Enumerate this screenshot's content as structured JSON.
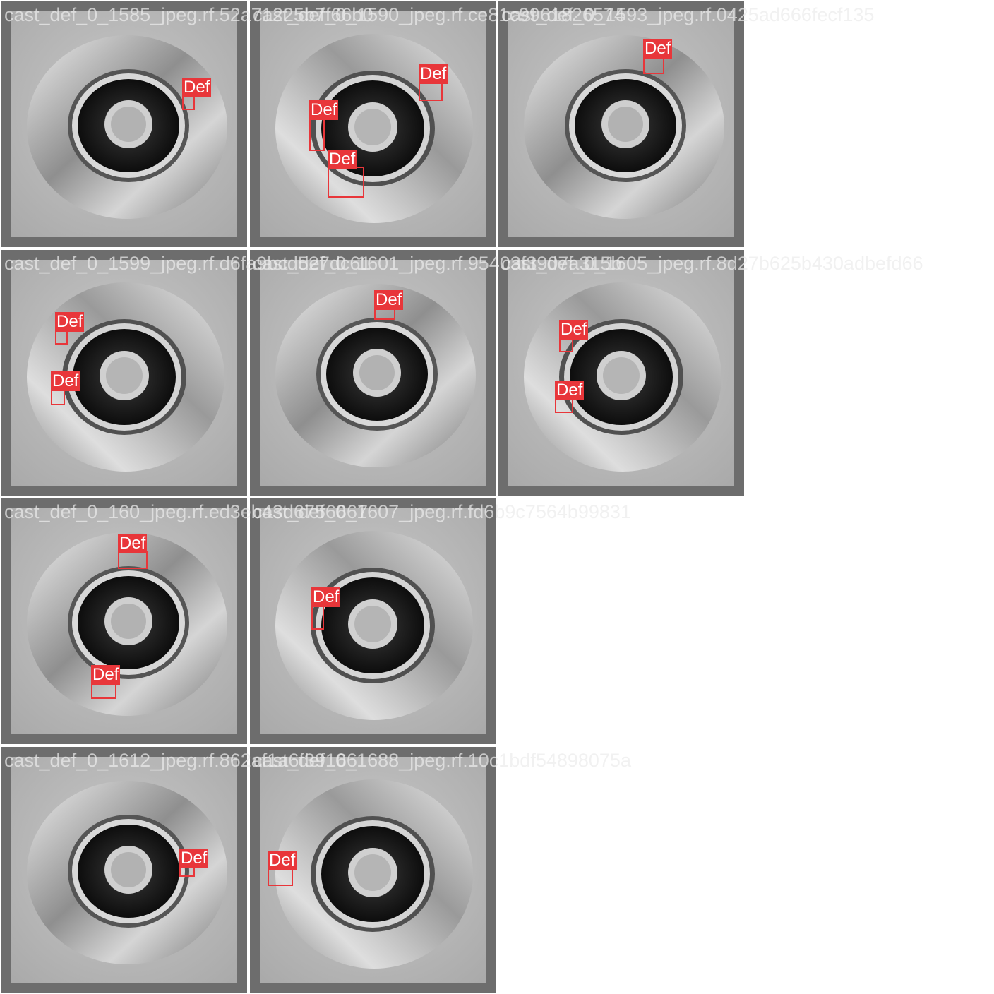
{
  "colors": {
    "tile_frame": "#6d6d6d",
    "box": "#e8363a",
    "label_text": "#ffffff"
  },
  "tiles": [
    {
      "filename": "cast_def_0_1585_jpeg.rf.52a71225b7f66b0",
      "detections": [
        {
          "label": "Def"
        }
      ]
    },
    {
      "filename": "cast_def_0_1590_jpeg.rf.ce81c9961826574",
      "detections": [
        {
          "label": "Def"
        },
        {
          "label": "Def"
        },
        {
          "label": "Def"
        }
      ]
    },
    {
      "filename": "cast_def_0_1593_jpeg.rf.0425ad666fecf135",
      "detections": [
        {
          "label": "Def"
        }
      ]
    },
    {
      "filename": "cast_def_0_1599_jpeg.rf.d6fa9bcd527dc61",
      "detections": [
        {
          "label": "Def"
        },
        {
          "label": "Def"
        }
      ]
    },
    {
      "filename": "cast_def_0_1601_jpeg.rf.95403f3907a315b",
      "detections": [
        {
          "label": "Def"
        }
      ]
    },
    {
      "filename": "cast_def_0_1605_jpeg.rf.8d27b625b430adbefd66",
      "detections": [
        {
          "label": "Def"
        },
        {
          "label": "Def"
        }
      ]
    },
    {
      "filename": "cast_def_0_160_jpeg.rf.ed3eb43d6756667",
      "detections": [
        {
          "label": "Def"
        },
        {
          "label": "Def"
        }
      ]
    },
    {
      "filename": "cast_def_0_1607_jpeg.rf.fd6b9c7564b99831",
      "detections": [
        {
          "label": "Def"
        }
      ]
    },
    {
      "filename": "cast_def_0_1612_jpeg.rf.862af1a6f39166",
      "detections": [
        {
          "label": "Def"
        }
      ]
    },
    {
      "filename": "cast_def_0_1688_jpeg.rf.10c1bdf54898075a",
      "detections": [
        {
          "label": "Def"
        }
      ]
    }
  ]
}
